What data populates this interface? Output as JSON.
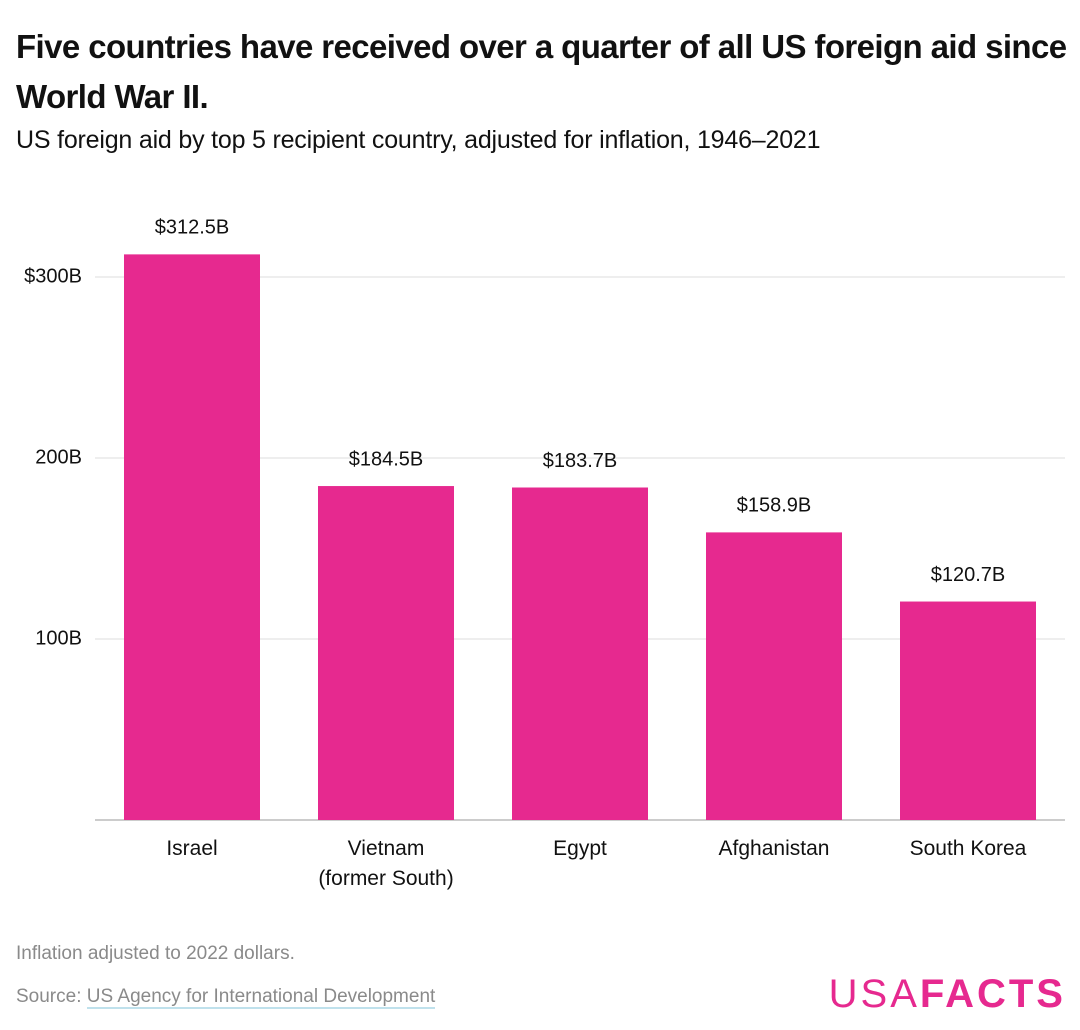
{
  "chart_data": {
    "type": "bar",
    "title": "Five countries have received over a quarter of all US foreign aid since World War II.",
    "subtitle": "US foreign aid by top 5 recipient country, adjusted for inflation, 1946–2021",
    "categories": [
      "Israel",
      "Vietnam (former South)",
      "Egypt",
      "Afghanistan",
      "South Korea"
    ],
    "values": [
      312.5,
      184.5,
      183.7,
      158.9,
      120.7
    ],
    "value_labels": [
      "$312.5B",
      "$184.5B",
      "$183.7B",
      "$158.9B",
      "$120.7B"
    ],
    "color": "#e6298f",
    "ylim": [
      0,
      340
    ],
    "yticks": [
      {
        "value": 100,
        "label": "100B"
      },
      {
        "value": 200,
        "label": "200B"
      },
      {
        "value": 300,
        "label": "$300B"
      }
    ],
    "grid": true,
    "note": "Inflation adjusted to 2022 dollars.",
    "source_label": "Source:",
    "source": "US Agency for International Development",
    "logo": [
      "USA",
      "FACTS"
    ]
  }
}
